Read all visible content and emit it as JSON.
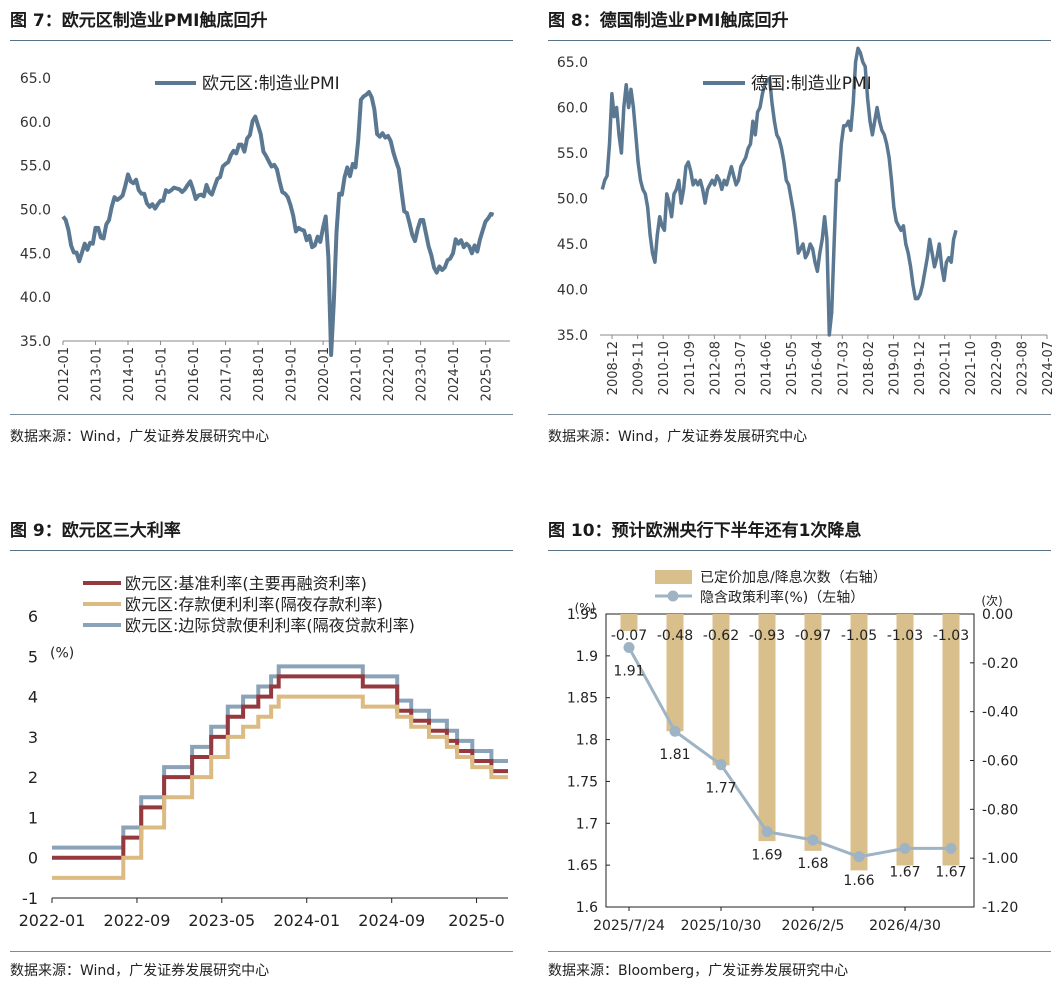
{
  "figures": [
    {
      "title": "图 7：欧元区制造业PMI触底回升",
      "source": "数据来源：Wind，广发证券发展研究中心",
      "chart_data": {
        "type": "line",
        "series": [
          {
            "name": "欧元区:制造业PMI",
            "color": "#5a7891",
            "x_start": 2012.0,
            "x_step": 0.0833,
            "values": [
              49.2,
              48.8,
              47.7,
              45.9,
              45.1,
              45.1,
              44.1,
              45.1,
              46.1,
              45.4,
              46.2,
              46.1,
              47.9,
              47.9,
              46.8,
              46.7,
              48.3,
              48.8,
              50.3,
              51.4,
              51.1,
              51.3,
              51.6,
              52.7,
              54.0,
              53.2,
              53.0,
              53.4,
              52.2,
              51.8,
              51.8,
              50.7,
              50.3,
              50.6,
              50.1,
              50.6,
              51.0,
              51.0,
              52.2,
              52.0,
              52.2,
              52.5,
              52.4,
              52.3,
              52.0,
              52.3,
              52.8,
              53.2,
              52.3,
              51.2,
              51.6,
              51.7,
              51.5,
              52.8,
              52.0,
              51.7,
              52.6,
              53.5,
              53.7,
              54.9,
              55.2,
              55.4,
              56.2,
              56.7,
              56.4,
              57.4,
              57.4,
              56.6,
              58.1,
              58.5,
              60.1,
              60.6,
              59.6,
              58.6,
              56.6,
              56.1,
              55.5,
              54.9,
              55.1,
              54.6,
              53.2,
              52.0,
              51.8,
              51.4,
              50.5,
              49.3,
              47.5,
              47.9,
              47.7,
              47.6,
              46.5,
              47.0,
              45.7,
              45.9,
              46.9,
              46.3,
              47.9,
              49.2,
              44.5,
              33.4,
              39.4,
              47.4,
              51.8,
              51.7,
              53.7,
              54.8,
              53.8,
              55.2,
              54.8,
              57.9,
              62.5,
              62.9,
              63.1,
              63.4,
              62.8,
              61.4,
              58.6,
              58.3,
              58.7,
              58.2,
              58.4,
              57.8,
              56.5,
              55.5,
              54.6,
              52.1,
              49.8,
              49.6,
              48.4,
              47.1,
              46.4,
              47.8,
              48.8,
              48.8,
              47.3,
              45.8,
              44.8,
              43.4,
              42.8,
              43.5,
              43.1,
              43.4,
              44.2,
              44.4,
              45.0,
              46.6,
              46.1,
              46.5,
              45.7,
              46.1,
              45.8,
              45.0,
              45.9,
              45.2,
              46.6,
              47.6,
              48.6,
              49.0,
              49.5,
              49.4
            ],
            "x_ticks": [
              "2012-01",
              "2013-01",
              "2014-01",
              "2015-01",
              "2016-01",
              "2017-01",
              "2018-01",
              "2019-01",
              "2020-01",
              "2021-01",
              "2022-01",
              "2023-01",
              "2024-01",
              "2025-01"
            ]
          }
        ],
        "ylim": [
          35,
          65
        ],
        "y_ticks": [
          "35.0",
          "40.0",
          "45.0",
          "50.0",
          "55.0",
          "60.0",
          "65.0"
        ]
      }
    },
    {
      "title": "图 8：德国制造业PMI触底回升",
      "source": "数据来源：Wind，广发证券发展研究中心",
      "chart_data": {
        "type": "line",
        "series": [
          {
            "name": "德国:制造业PMI",
            "color": "#5a7891",
            "x_start": 2009.0,
            "x_step": 0.0833,
            "values": [
              51.0,
              52.0,
              52.5,
              56.0,
              61.5,
              59.0,
              60.0,
              57.0,
              55.0,
              60.0,
              62.5,
              60.0,
              62.0,
              60.0,
              57.0,
              54.0,
              52.0,
              51.0,
              50.5,
              49.0,
              46.0,
              44.0,
              43.0,
              46.0,
              48.0,
              47.0,
              46.5,
              50.5,
              49.5,
              48.0,
              50.5,
              51.0,
              52.0,
              49.5,
              51.0,
              53.5,
              54.0,
              53.0,
              51.5,
              52.0,
              51.5,
              52.0,
              51.0,
              49.5,
              51.0,
              51.5,
              52.0,
              51.5,
              52.5,
              52.0,
              51.0,
              52.0,
              51.5,
              52.5,
              53.5,
              52.5,
              51.5,
              52.0,
              53.5,
              54.0,
              54.5,
              55.5,
              56.0,
              58.5,
              57.0,
              59.5,
              60.0,
              61.5,
              62.5,
              63.0,
              63.2,
              60.5,
              58.5,
              57.0,
              56.5,
              55.5,
              54.0,
              52.0,
              51.5,
              50.0,
              48.5,
              46.5,
              44.0,
              44.5,
              45.0,
              43.5,
              44.0,
              45.0,
              44.5,
              43.0,
              42.0,
              44.0,
              45.5,
              48.0,
              45.5,
              35.0,
              37.5,
              45.0,
              52.0,
              52.0,
              56.0,
              58.0,
              58.0,
              58.5,
              57.5,
              60.5,
              65.0,
              66.5,
              66.0,
              65.0,
              64.5,
              61.0,
              58.5,
              57.0,
              58.5,
              60.0,
              58.5,
              57.5,
              57.0,
              56.0,
              54.5,
              52.0,
              49.0,
              47.5,
              47.0,
              46.5,
              47.0,
              45.0,
              44.0,
              42.5,
              40.5,
              39.0,
              39.0,
              39.5,
              40.5,
              42.0,
              43.5,
              45.5,
              44.0,
              42.5,
              43.5,
              45.0,
              42.5,
              41.0,
              43.0,
              43.5,
              43.0,
              45.5,
              46.5
            ]
          }
        ],
        "x_ticks": [
          "2008-12",
          "2009-11",
          "2010-10",
          "2011-09",
          "2012-08",
          "2013-07",
          "2014-06",
          "2015-05",
          "2016-04",
          "2017-03",
          "2018-02",
          "2019-01",
          "2019-12",
          "2020-11",
          "2021-10",
          "2022-09",
          "2023-08",
          "2024-07"
        ],
        "ylim": [
          35,
          65
        ],
        "y_ticks": [
          "35.0",
          "40.0",
          "45.0",
          "50.0",
          "55.0",
          "60.0",
          "65.0"
        ]
      }
    },
    {
      "title": "图 9：欧元区三大利率",
      "source": "数据来源：Wind，广发证券发展研究中心",
      "chart_data": {
        "type": "line",
        "step": true,
        "unit_label": "(%)",
        "x_start": 2022.0,
        "x_end": 2025.58,
        "x_ticks": [
          "2022-01",
          "2022-09",
          "2023-05",
          "2024-01",
          "2024-09",
          "2025-0"
        ],
        "x_tick_values": [
          2022.0,
          2022.667,
          2023.333,
          2024.0,
          2024.667,
          2025.333
        ],
        "ylim": [
          -1,
          6
        ],
        "y_ticks": [
          "-1",
          "0",
          "1",
          "2",
          "3",
          "4",
          "5",
          "6"
        ],
        "series": [
          {
            "name": "欧元区:基准利率(主要再融资利率)",
            "color": "#943a3f",
            "points": [
              [
                2022.0,
                0
              ],
              [
                2022.56,
                0.5
              ],
              [
                2022.7,
                1.25
              ],
              [
                2022.88,
                2.0
              ],
              [
                2023.1,
                2.5
              ],
              [
                2023.25,
                3.0
              ],
              [
                2023.38,
                3.5
              ],
              [
                2023.5,
                3.75
              ],
              [
                2023.62,
                4.0
              ],
              [
                2023.72,
                4.25
              ],
              [
                2023.78,
                4.5
              ],
              [
                2024.44,
                4.25
              ],
              [
                2024.71,
                3.65
              ],
              [
                2024.82,
                3.4
              ],
              [
                2024.96,
                3.15
              ],
              [
                2025.1,
                2.9
              ],
              [
                2025.18,
                2.65
              ],
              [
                2025.3,
                2.4
              ],
              [
                2025.45,
                2.15
              ],
              [
                2025.58,
                2.15
              ]
            ]
          },
          {
            "name": "欧元区:存款便利利率(隔夜存款利率)",
            "color": "#dcbb83",
            "points": [
              [
                2022.0,
                -0.5
              ],
              [
                2022.56,
                0
              ],
              [
                2022.7,
                0.75
              ],
              [
                2022.88,
                1.5
              ],
              [
                2023.1,
                2.0
              ],
              [
                2023.25,
                2.5
              ],
              [
                2023.38,
                3.0
              ],
              [
                2023.5,
                3.25
              ],
              [
                2023.62,
                3.5
              ],
              [
                2023.72,
                3.75
              ],
              [
                2023.78,
                4.0
              ],
              [
                2024.44,
                3.75
              ],
              [
                2024.71,
                3.5
              ],
              [
                2024.82,
                3.25
              ],
              [
                2024.96,
                3.0
              ],
              [
                2025.1,
                2.75
              ],
              [
                2025.18,
                2.5
              ],
              [
                2025.3,
                2.25
              ],
              [
                2025.45,
                2.0
              ],
              [
                2025.58,
                2.0
              ]
            ]
          },
          {
            "name": "欧元区:边际贷款便利利率(隔夜贷款利率)",
            "color": "#8aa3b8",
            "points": [
              [
                2022.0,
                0.25
              ],
              [
                2022.56,
                0.75
              ],
              [
                2022.7,
                1.5
              ],
              [
                2022.88,
                2.25
              ],
              [
                2023.1,
                2.75
              ],
              [
                2023.25,
                3.25
              ],
              [
                2023.38,
                3.75
              ],
              [
                2023.5,
                4.0
              ],
              [
                2023.62,
                4.25
              ],
              [
                2023.72,
                4.5
              ],
              [
                2023.78,
                4.75
              ],
              [
                2024.44,
                4.5
              ],
              [
                2024.71,
                3.9
              ],
              [
                2024.82,
                3.65
              ],
              [
                2024.96,
                3.4
              ],
              [
                2025.1,
                3.15
              ],
              [
                2025.18,
                2.9
              ],
              [
                2025.3,
                2.65
              ],
              [
                2025.45,
                2.4
              ],
              [
                2025.58,
                2.4
              ]
            ]
          }
        ]
      }
    },
    {
      "title": "图 10：预计欧洲央行下半年还有1次降息",
      "source": "数据来源：Bloomberg，广发证券发展研究中心",
      "chart_data": {
        "type": "bar",
        "left_unit": "(%)",
        "right_unit": "(次)",
        "x_ticks": [
          "2025/7/24",
          "2025/10/30",
          "2026/2/5",
          "2026/4/30"
        ],
        "x_tick_positions": [
          0,
          2,
          4,
          6
        ],
        "ylim_left": [
          1.6,
          1.95
        ],
        "y_ticks_left": [
          "1.6",
          "1.65",
          "1.7",
          "1.75",
          "1.8",
          "1.85",
          "1.9",
          "1.95"
        ],
        "ylim_right": [
          -1.2,
          0
        ],
        "y_ticks_right": [
          "-1.20",
          "-1.00",
          "-0.80",
          "-0.60",
          "-0.40",
          "-0.20",
          "0.00"
        ],
        "bar_series": {
          "name": "已定价加息/降息次数（右轴）",
          "color": "#d8bf8c",
          "values": [
            -0.07,
            -0.48,
            -0.62,
            -0.93,
            -0.97,
            -1.05,
            -1.03,
            -1.03
          ],
          "labels": [
            "-0.07",
            "-0.48",
            "-0.62",
            "-0.93",
            "-0.97",
            "-1.05",
            "-1.03",
            "-1.03"
          ]
        },
        "line_series": {
          "name": "隐含政策利率(%)（左轴）",
          "color": "#9eb3c4",
          "values": [
            1.91,
            1.81,
            1.77,
            1.69,
            1.68,
            1.66,
            1.67,
            1.67
          ],
          "labels": [
            "1.91",
            "1.81",
            "1.77",
            "1.69",
            "1.68",
            "1.66",
            "1.67",
            "1.67"
          ]
        }
      }
    }
  ]
}
